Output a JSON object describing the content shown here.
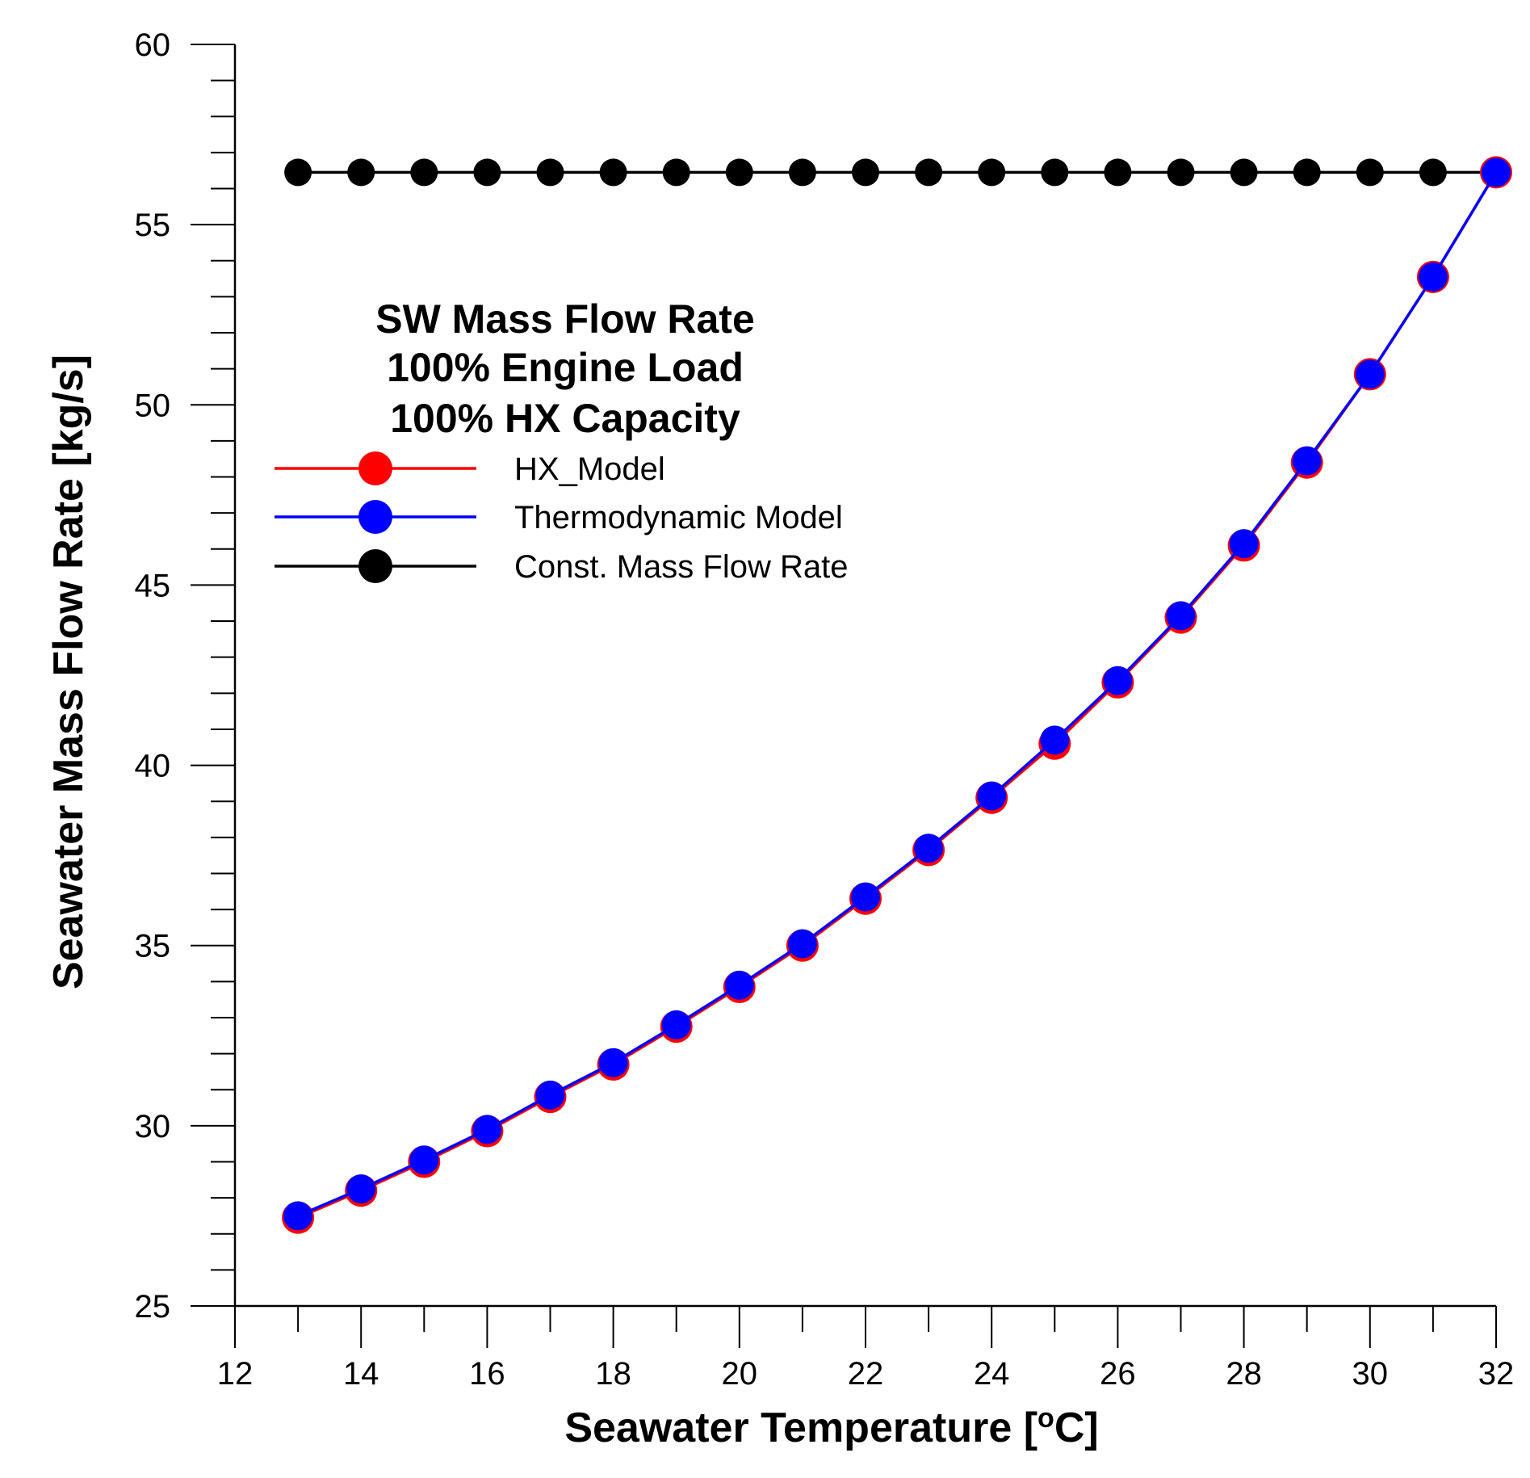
{
  "chart_data": {
    "type": "line",
    "title_lines": [
      "SW Mass Flow Rate",
      "100% Engine Load",
      "100% HX Capacity"
    ],
    "xlabel": "Seawater Temperature [",
    "xlabel_sup": "o",
    "xlabel_tail": "C]",
    "ylabel": "Seawater Mass Flow Rate [kg/s]",
    "xlim": [
      12,
      32
    ],
    "ylim": [
      25,
      60
    ],
    "x_ticks": [
      "12",
      "14",
      "16",
      "18",
      "20",
      "22",
      "24",
      "26",
      "28",
      "30",
      "32"
    ],
    "y_ticks": [
      "25",
      "30",
      "35",
      "40",
      "45",
      "50",
      "55",
      "60"
    ],
    "grid": false,
    "legend_position": "upper-left",
    "x": [
      13,
      14,
      15,
      16,
      17,
      18,
      19,
      20,
      21,
      22,
      23,
      24,
      25,
      26,
      27,
      28,
      29,
      30,
      31,
      32
    ],
    "series": [
      {
        "name": "HX_Model",
        "color": "#ff0000",
        "values": [
          27.45,
          28.2,
          29.0,
          29.85,
          30.8,
          31.7,
          32.75,
          33.85,
          35.0,
          36.3,
          37.65,
          39.1,
          40.6,
          42.3,
          44.1,
          46.1,
          48.4,
          50.85,
          53.55,
          56.45
        ]
      },
      {
        "name": "Thermodynamic Model",
        "color": "#0000ff",
        "values": [
          27.5,
          28.25,
          29.05,
          29.9,
          30.85,
          31.75,
          32.8,
          33.9,
          35.05,
          36.35,
          37.7,
          39.15,
          40.7,
          42.35,
          44.15,
          46.15,
          48.45,
          50.85,
          53.55,
          56.45
        ]
      },
      {
        "name": "Const. Mass Flow Rate",
        "color": "#000000",
        "values": [
          56.45,
          56.45,
          56.45,
          56.45,
          56.45,
          56.45,
          56.45,
          56.45,
          56.45,
          56.45,
          56.45,
          56.45,
          56.45,
          56.45,
          56.45,
          56.45,
          56.45,
          56.45,
          56.45,
          56.45
        ]
      }
    ]
  }
}
